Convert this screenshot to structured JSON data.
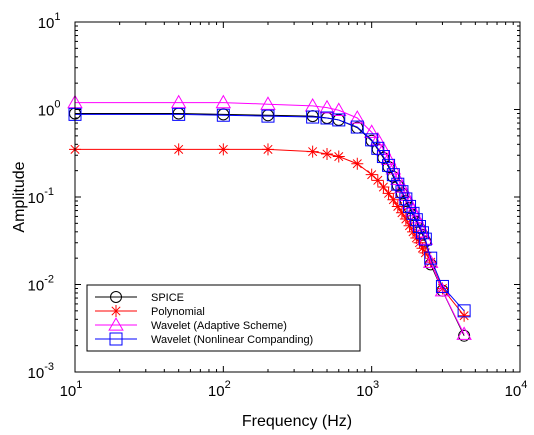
{
  "chart_data": {
    "type": "line",
    "xlabel": "Frequency (Hz)",
    "ylabel": "Amplitude",
    "x_scale": "log",
    "y_scale": "log",
    "xlim": [
      10,
      10000
    ],
    "ylim": [
      0.001,
      10
    ],
    "grid": false,
    "legend_position": "bottom-left",
    "x_tick_labels": [
      {
        "value": 10,
        "base": "10",
        "exp": "1"
      },
      {
        "value": 100,
        "base": "10",
        "exp": "2"
      },
      {
        "value": 1000,
        "base": "10",
        "exp": "3"
      },
      {
        "value": 10000,
        "base": "10",
        "exp": "4"
      }
    ],
    "y_tick_labels": [
      {
        "value": 0.001,
        "base": "10",
        "exp": "-3"
      },
      {
        "value": 0.01,
        "base": "10",
        "exp": "-2"
      },
      {
        "value": 0.1,
        "base": "10",
        "exp": "-1"
      },
      {
        "value": 1,
        "base": "10",
        "exp": "0"
      },
      {
        "value": 10,
        "base": "10",
        "exp": "1"
      }
    ],
    "series": [
      {
        "name": "SPICE",
        "color": "#000000",
        "marker": "circle",
        "x": [
          10,
          50,
          100,
          200,
          400,
          500,
          600,
          800,
          1000,
          1100,
          1200,
          1300,
          1400,
          1500,
          1600,
          1700,
          1800,
          1900,
          2000,
          2100,
          2200,
          2300,
          2500,
          3000,
          4200
        ],
        "y": [
          0.9,
          0.9,
          0.88,
          0.86,
          0.84,
          0.8,
          0.76,
          0.62,
          0.44,
          0.35,
          0.28,
          0.22,
          0.17,
          0.135,
          0.11,
          0.09,
          0.075,
          0.062,
          0.052,
          0.044,
          0.037,
          0.031,
          0.017,
          0.0085,
          0.0026
        ]
      },
      {
        "name": "Polynomial",
        "color": "#ff0000",
        "marker": "asterisk",
        "x": [
          10,
          50,
          100,
          200,
          400,
          500,
          600,
          800,
          1000,
          1100,
          1200,
          1300,
          1400,
          1500,
          1600,
          1700,
          1800,
          1900,
          2000,
          2100,
          2200,
          2300,
          2500,
          3000,
          4200
        ],
        "y": [
          0.35,
          0.35,
          0.35,
          0.35,
          0.33,
          0.31,
          0.29,
          0.24,
          0.18,
          0.155,
          0.13,
          0.11,
          0.093,
          0.078,
          0.066,
          0.056,
          0.047,
          0.04,
          0.034,
          0.03,
          0.026,
          0.023,
          0.018,
          0.009,
          0.0044
        ]
      },
      {
        "name": "Wavelet (Adaptive Scheme)",
        "color": "#ff00ff",
        "marker": "triangle",
        "x": [
          10,
          50,
          100,
          200,
          400,
          500,
          600,
          800,
          1000,
          1100,
          1200,
          1300,
          1400,
          1500,
          1600,
          1700,
          1800,
          1900,
          2000,
          2100,
          2200,
          2300,
          2500,
          3000,
          4200
        ],
        "y": [
          1.2,
          1.2,
          1.2,
          1.15,
          1.1,
          1.05,
          0.98,
          0.8,
          0.55,
          0.45,
          0.35,
          0.27,
          0.21,
          0.16,
          0.13,
          0.105,
          0.085,
          0.07,
          0.058,
          0.048,
          0.04,
          0.033,
          0.018,
          0.0085,
          0.0027
        ]
      },
      {
        "name": "Wavelet (Nonlinear Companding)",
        "color": "#0000ff",
        "marker": "square",
        "x": [
          10,
          50,
          100,
          200,
          400,
          500,
          600,
          800,
          1000,
          1100,
          1200,
          1300,
          1400,
          1500,
          1600,
          1700,
          1800,
          1900,
          2000,
          2100,
          2200,
          2300,
          2500,
          3000,
          4200
        ],
        "y": [
          0.88,
          0.88,
          0.86,
          0.84,
          0.82,
          0.8,
          0.76,
          0.63,
          0.45,
          0.36,
          0.29,
          0.23,
          0.18,
          0.14,
          0.115,
          0.095,
          0.078,
          0.065,
          0.055,
          0.046,
          0.039,
          0.033,
          0.02,
          0.0095,
          0.005
        ]
      }
    ]
  }
}
